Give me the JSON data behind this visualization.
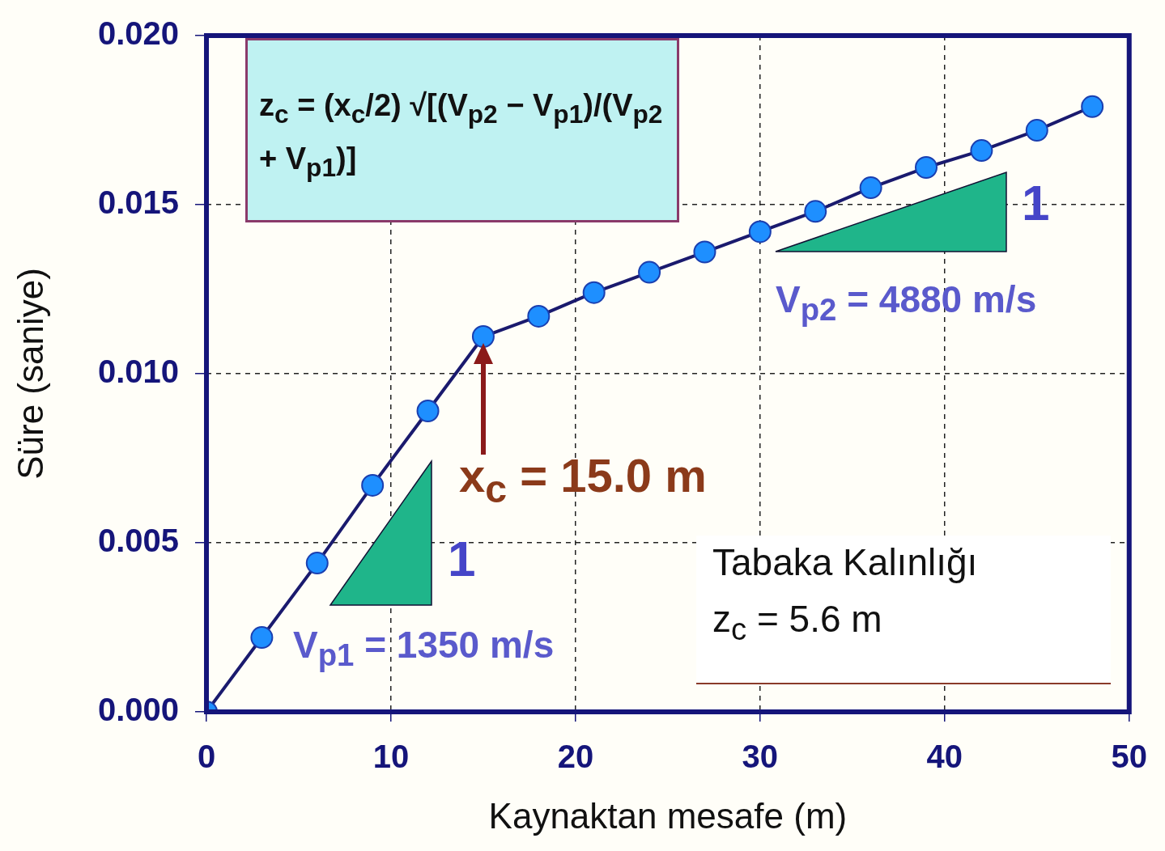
{
  "chart_data": {
    "type": "line",
    "xlabel": "Kaynaktan mesafe (m)",
    "ylabel": "Süre (saniye)",
    "x": [
      0,
      3,
      6,
      9,
      12,
      15,
      18,
      21,
      24,
      27,
      30,
      33,
      36,
      39,
      42,
      45,
      48
    ],
    "series": [
      {
        "color": "#1a1a6e",
        "values": [
          0,
          0.0022,
          0.0044,
          0.0067,
          0.0089,
          0.0111,
          0.0117,
          0.0124,
          0.013,
          0.0136,
          0.0142,
          0.0148,
          0.0155,
          0.0161,
          0.0166,
          0.0172,
          0.0179
        ]
      }
    ],
    "marker": "circle",
    "line_style": "solid",
    "grid": true,
    "xlim": [
      0,
      50
    ],
    "xticks": [
      0,
      10,
      20,
      30,
      40,
      50
    ],
    "ylim": [
      0,
      0.02
    ],
    "yticks": [
      {
        "value": 0,
        "label": "0.000"
      },
      {
        "value": 0.005,
        "label": "0.005"
      },
      {
        "value": 0.01,
        "label": "0.010"
      },
      {
        "value": 0.015,
        "label": "0.015"
      },
      {
        "value": 0.02,
        "label": "0.020"
      }
    ],
    "annotations": [
      "z$_{c}$ = (x$_{c}$/2) √[(V$_{p2}$ − V$_{p1}$)/(V$_{p2}$ + V$_{p1}$)]",
      {
        "text": "x$_{c}$ = 15.0 m",
        "x": 15,
        "y": 0.0111
      },
      "1",
      "V$_{p1}$ = 1350 m/s",
      "1",
      "V$_{p2}$ = 4880 m/s",
      "Tabaka Kalınlığı",
      "z$_{c}$ = 5.6 m"
    ]
  }
}
